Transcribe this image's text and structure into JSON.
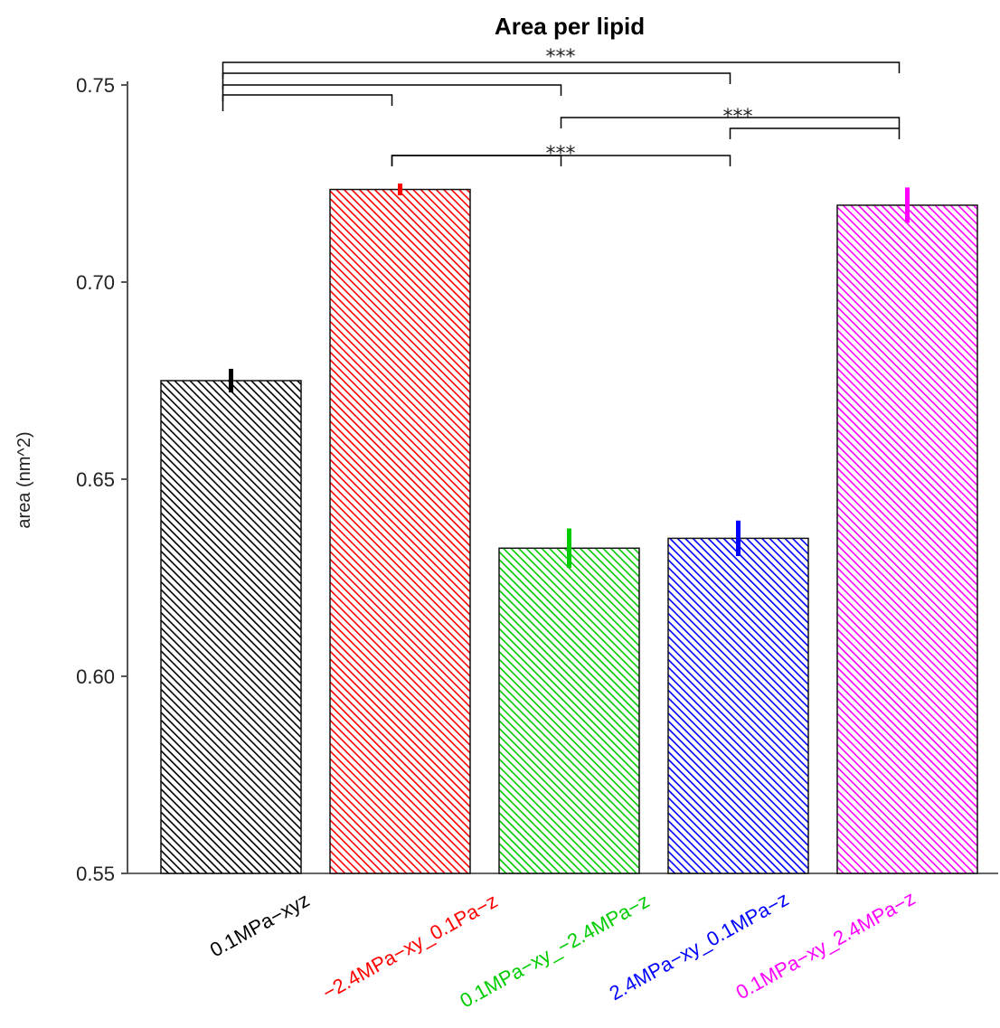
{
  "chart_data": {
    "type": "bar",
    "title": "Area per lipid",
    "ylabel": "area (nm^2)",
    "xlabel": "",
    "ylim": [
      0.55,
      0.75
    ],
    "yticks": [
      0.55,
      0.6,
      0.65,
      0.7,
      0.75
    ],
    "ytick_labels": [
      "0.55",
      "0.60",
      "0.65",
      "0.70",
      "0.75"
    ],
    "grid": false,
    "bar_fill": "hatched",
    "categories": [
      "0.1MPa−xyz",
      "−2.4MPa−xy_0.1Pa−z",
      "0.1MPa−xy_−2.4MPa−z",
      "2.4MPa−xy_0.1MPa−z",
      "0.1MPa−xy_2.4MPa−z"
    ],
    "colors": [
      "#000000",
      "#ff0000",
      "#00cc00",
      "#0000ff",
      "#ff00ff"
    ],
    "values": [
      0.675,
      0.7235,
      0.6325,
      0.635,
      0.7195
    ],
    "errors": [
      0.003,
      0.0015,
      0.005,
      0.0045,
      0.0045
    ],
    "significance": [
      {
        "from": 0,
        "to": 1,
        "label": ""
      },
      {
        "from": 0,
        "to": 2,
        "label": ""
      },
      {
        "from": 0,
        "to": 3,
        "label": ""
      },
      {
        "from": 0,
        "to": 4,
        "label": "***"
      },
      {
        "from": 2,
        "to": 4,
        "label": "***"
      },
      {
        "from": 3,
        "to": 4,
        "label": ""
      },
      {
        "from": 1,
        "to": 2,
        "label": ""
      },
      {
        "from": 1,
        "to": 3,
        "label": "***"
      }
    ]
  }
}
